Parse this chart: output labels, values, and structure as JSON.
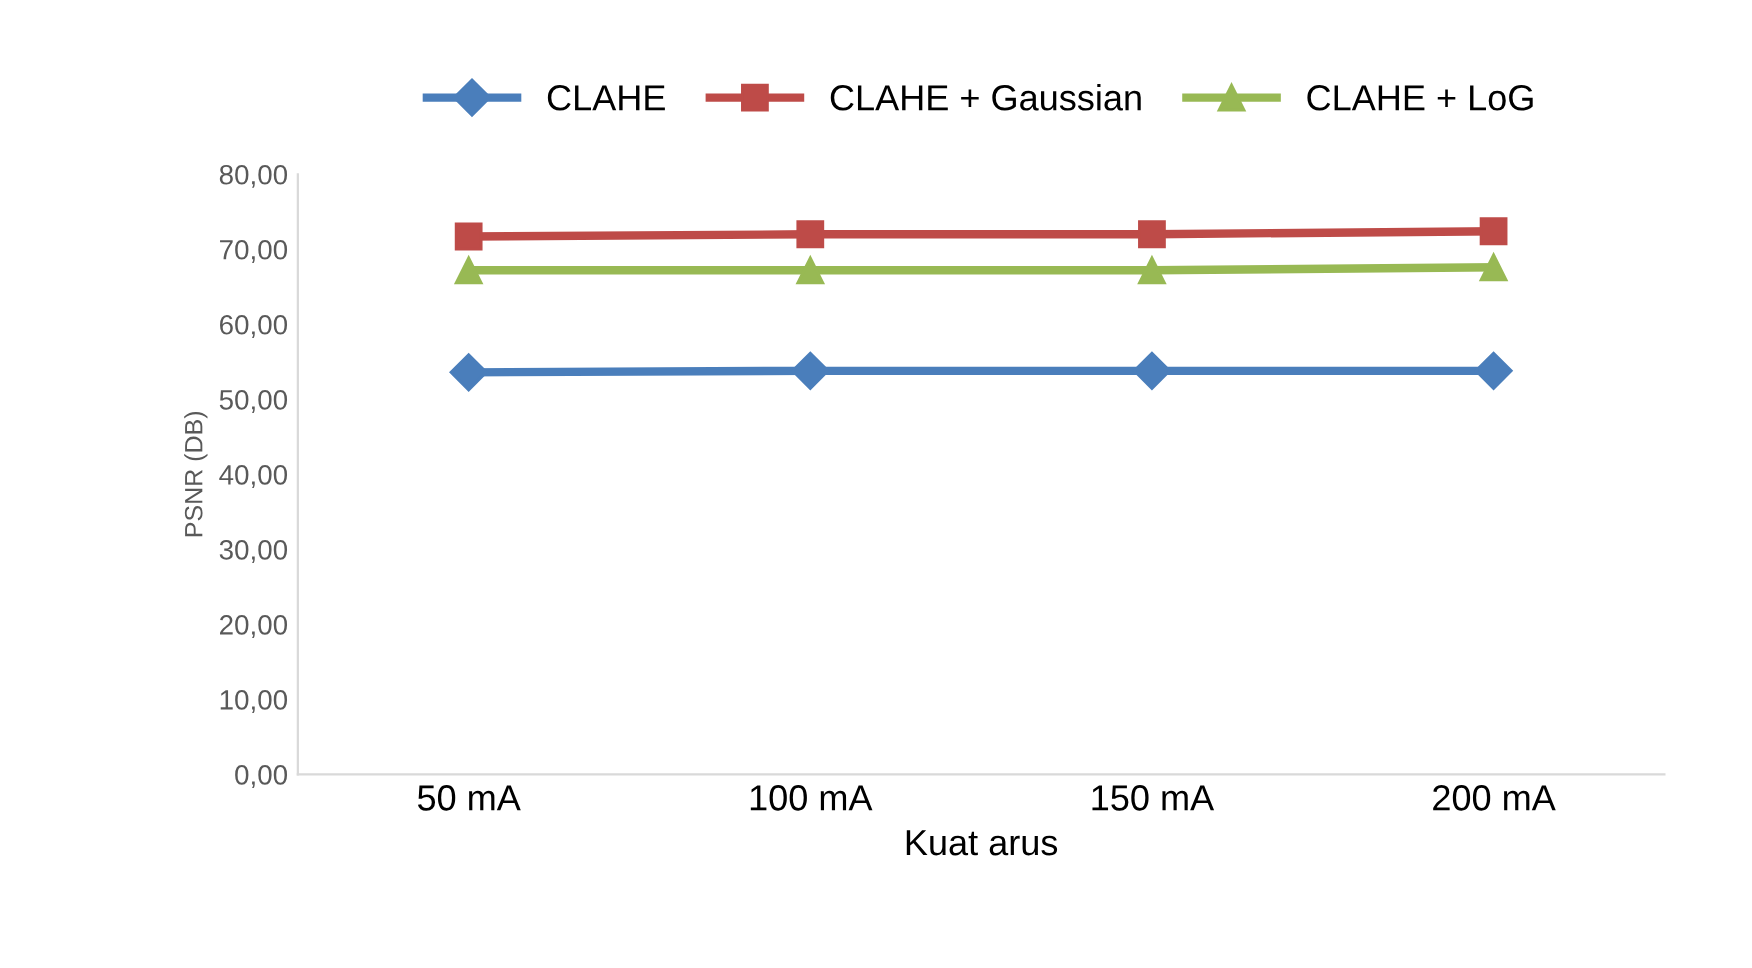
{
  "chart_data": {
    "type": "line",
    "xlabel": "Kuat arus",
    "ylabel": "PSNR (DB)",
    "categories": [
      "50 mA",
      "100 mA",
      "150 mA",
      "200 mA"
    ],
    "series": [
      {
        "name": "CLAHE",
        "color": "#4a7ebb",
        "values": [
          53.6,
          53.8,
          53.8,
          53.8
        ],
        "marker": "diamond"
      },
      {
        "name": "CLAHE + Gaussian",
        "color": "#be4b48",
        "values": [
          71.7,
          72.0,
          72.0,
          72.4
        ],
        "marker": "square"
      },
      {
        "name": "CLAHE + LoG",
        "color": "#98b954",
        "values": [
          67.2,
          67.2,
          67.2,
          67.6
        ],
        "marker": "triangle"
      }
    ],
    "ylim": [
      0,
      80
    ],
    "yticks": [
      {
        "value": 0,
        "label": "0,00"
      },
      {
        "value": 10,
        "label": "10,00"
      },
      {
        "value": 20,
        "label": "20,00"
      },
      {
        "value": 30,
        "label": "30,00"
      },
      {
        "value": 40,
        "label": "40,00"
      },
      {
        "value": 50,
        "label": "50,00"
      },
      {
        "value": 60,
        "label": "60,00"
      },
      {
        "value": 70,
        "label": "70,00"
      },
      {
        "value": 80,
        "label": "80,00"
      }
    ],
    "grid": false,
    "legend": "top",
    "line_style": "solid"
  }
}
